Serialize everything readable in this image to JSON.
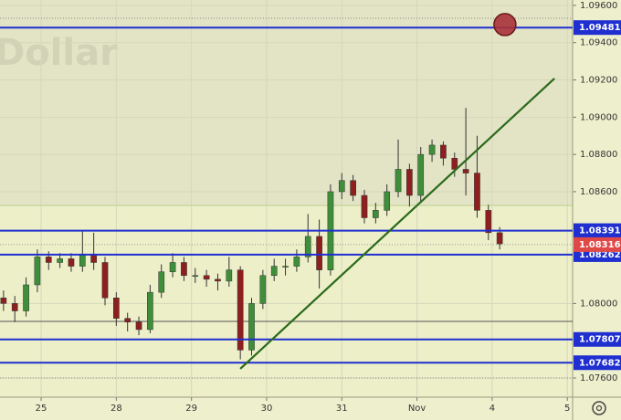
{
  "chart_data": {
    "type": "candlestick",
    "watermark": "Dollar",
    "xlim": [
      -0.547,
      7.07
    ],
    "ylim": [
      1.07497,
      1.09629
    ],
    "xticks": [
      {
        "value": 0,
        "label": "25"
      },
      {
        "value": 1,
        "label": "28"
      },
      {
        "value": 2,
        "label": "29"
      },
      {
        "value": 3,
        "label": "30"
      },
      {
        "value": 4,
        "label": "31"
      },
      {
        "value": 5,
        "label": "Nov"
      },
      {
        "value": 6,
        "label": "4"
      },
      {
        "value": 7,
        "label": "5"
      }
    ],
    "yticks": [
      {
        "value": 1.096,
        "label": "1.09600"
      },
      {
        "value": 1.094,
        "label": "1.09400"
      },
      {
        "value": 1.092,
        "label": "1.09200"
      },
      {
        "value": 1.09,
        "label": "1.09000"
      },
      {
        "value": 1.088,
        "label": "1.08800"
      },
      {
        "value": 1.086,
        "label": "1.08600"
      },
      {
        "value": 1.08,
        "label": "1.08000"
      },
      {
        "value": 1.076,
        "label": "1.07600"
      }
    ],
    "grid": true,
    "up_color": "#3f8f3a",
    "down_color": "#8e1f1f",
    "x": [
      -0.5,
      -0.35,
      -0.2,
      -0.05,
      0.1,
      0.25,
      0.4,
      0.55,
      0.7,
      0.85,
      1.0,
      1.15,
      1.3,
      1.45,
      1.6,
      1.75,
      1.9,
      2.05,
      2.2,
      2.35,
      2.5,
      2.65,
      2.8,
      2.95,
      3.1,
      3.25,
      3.4,
      3.55,
      3.7,
      3.85,
      4.0,
      4.15,
      4.3,
      4.45,
      4.6,
      4.75,
      4.9,
      5.05,
      5.2,
      5.35,
      5.5,
      5.65,
      5.8,
      5.95,
      6.1
    ],
    "open": [
      1.0803,
      1.08,
      1.0796,
      1.081,
      1.0825,
      1.0822,
      1.0824,
      1.082,
      1.0826,
      1.0822,
      1.0803,
      1.0792,
      1.079,
      1.0786,
      1.0806,
      1.0817,
      1.0822,
      1.0815,
      1.0815,
      1.0813,
      1.0812,
      1.0818,
      1.0775,
      1.08,
      1.0815,
      1.082,
      1.082,
      1.0825,
      1.0836,
      1.0818,
      1.086,
      1.0866,
      1.0858,
      1.0846,
      1.085,
      1.086,
      1.0872,
      1.0858,
      1.088,
      1.0885,
      1.0878,
      1.0872,
      1.087,
      1.085,
      1.0838
    ],
    "high": [
      1.0807,
      1.0804,
      1.0814,
      1.0829,
      1.0828,
      1.0827,
      1.0827,
      1.0839,
      1.0838,
      1.0825,
      1.0806,
      1.0795,
      1.0793,
      1.081,
      1.0821,
      1.0827,
      1.0825,
      1.0819,
      1.0818,
      1.0816,
      1.0825,
      1.082,
      1.0803,
      1.0818,
      1.0824,
      1.0824,
      1.0829,
      1.0848,
      1.0845,
      1.0864,
      1.087,
      1.0869,
      1.0861,
      1.0854,
      1.0864,
      1.0888,
      1.0875,
      1.0884,
      1.0888,
      1.0887,
      1.0881,
      1.0905,
      1.089,
      1.0853,
      1.0841
    ],
    "low": [
      1.0796,
      1.079,
      1.0793,
      1.0806,
      1.0818,
      1.0819,
      1.0817,
      1.0817,
      1.0818,
      1.0799,
      1.0788,
      1.0785,
      1.0783,
      1.0784,
      1.0803,
      1.0814,
      1.0812,
      1.0811,
      1.0809,
      1.0807,
      1.0809,
      1.077,
      1.0772,
      1.0797,
      1.0812,
      1.0815,
      1.0817,
      1.0822,
      1.0808,
      1.0815,
      1.0856,
      1.0855,
      1.0843,
      1.0843,
      1.0847,
      1.0857,
      1.0852,
      1.0855,
      1.0876,
      1.0874,
      1.0868,
      1.0858,
      1.0846,
      1.0834,
      1.0829
    ],
    "close": [
      1.08,
      1.0796,
      1.081,
      1.0825,
      1.0822,
      1.0824,
      1.082,
      1.0826,
      1.0822,
      1.0803,
      1.0792,
      1.079,
      1.0786,
      1.0806,
      1.0817,
      1.0822,
      1.0815,
      1.0815,
      1.0813,
      1.0812,
      1.0818,
      1.0775,
      1.08,
      1.0815,
      1.082,
      1.082,
      1.0825,
      1.0836,
      1.0818,
      1.086,
      1.0866,
      1.0858,
      1.0846,
      1.085,
      1.086,
      1.0872,
      1.0858,
      1.088,
      1.0885,
      1.0878,
      1.0872,
      1.087,
      1.085,
      1.0838,
      1.0832
    ],
    "levels": [
      1.09481,
      1.08391,
      1.08262,
      1.07807,
      1.07682
    ],
    "level_color": "#1f2fd0",
    "lines": [
      {
        "value": 1.07904,
        "color": "#555555"
      },
      {
        "value": 1.08526,
        "color": "#b9d08a"
      }
    ],
    "dotted_lines": [
      1.09531,
      1.076
    ],
    "current_price": 1.08316,
    "current_color": "#e04848",
    "trendline": {
      "x": [
        2.649,
        6.829
      ],
      "y": [
        1.07649,
        1.09208
      ],
      "color": "#2a6a1a"
    },
    "marker": {
      "x": 6.17,
      "y": 1.09497,
      "color": "#a8323a"
    }
  }
}
